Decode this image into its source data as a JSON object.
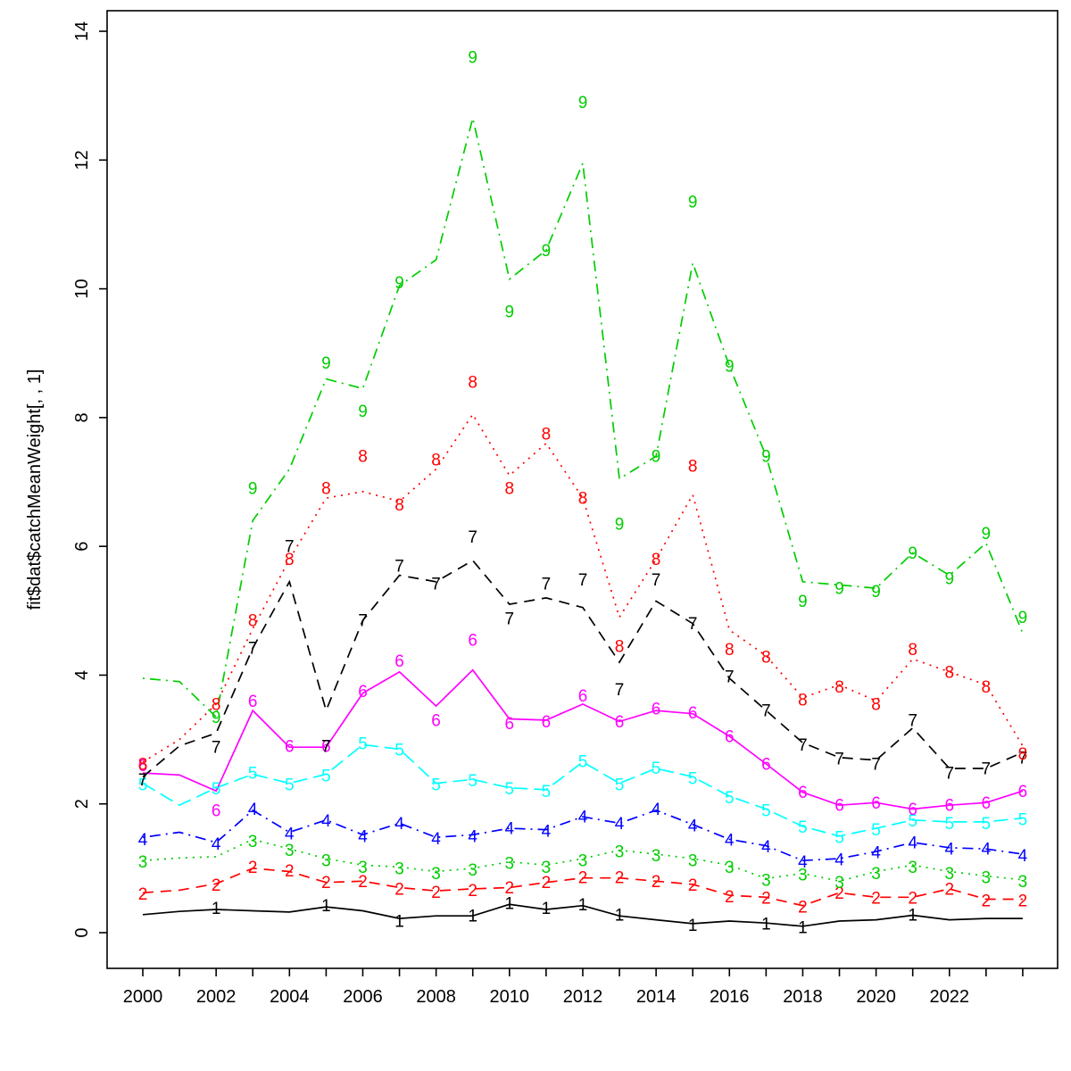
{
  "chart_data": {
    "type": "line",
    "title": "",
    "xlabel": "",
    "ylabel": "fit$dat$catchMeanWeight[, , 1]",
    "x": [
      2000,
      2001,
      2002,
      2003,
      2004,
      2005,
      2006,
      2007,
      2008,
      2009,
      2010,
      2011,
      2012,
      2013,
      2014,
      2015,
      2016,
      2017,
      2018,
      2019,
      2020,
      2021,
      2022,
      2023,
      2024
    ],
    "xtick_labels": [
      2000,
      2002,
      2004,
      2006,
      2008,
      2010,
      2012,
      2014,
      2016,
      2018,
      2020,
      2022
    ],
    "yticks": [
      0,
      2,
      4,
      6,
      8,
      10,
      12,
      14
    ],
    "ylim": [
      0,
      14
    ],
    "grid": false,
    "legend": "none",
    "series": [
      {
        "name": "1",
        "color": "#000000",
        "linestyle": "solid",
        "line": [
          0.28,
          0.33,
          0.36,
          0.34,
          0.32,
          0.4,
          0.34,
          0.22,
          0.26,
          0.26,
          0.44,
          0.36,
          0.42,
          0.26,
          0.2,
          0.14,
          0.18,
          0.15,
          0.1,
          0.18,
          0.2,
          0.27,
          0.2,
          0.22,
          0.22
        ],
        "obs": [
          null,
          null,
          0.38,
          null,
          null,
          0.42,
          null,
          0.18,
          null,
          0.26,
          0.46,
          0.38,
          0.44,
          0.28,
          null,
          0.12,
          null,
          0.14,
          0.08,
          null,
          null,
          0.28,
          null,
          null,
          null
        ]
      },
      {
        "name": "2",
        "color": "#FF0000",
        "linestyle": "dashed",
        "line": [
          0.62,
          0.66,
          0.76,
          1.0,
          0.95,
          0.78,
          0.8,
          0.7,
          0.65,
          0.68,
          0.7,
          0.78,
          0.85,
          0.85,
          0.8,
          0.75,
          0.58,
          0.55,
          0.42,
          0.62,
          0.55,
          0.55,
          0.68,
          0.52,
          0.52
        ],
        "obs": [
          0.6,
          null,
          0.74,
          1.02,
          0.96,
          0.78,
          0.8,
          0.68,
          0.63,
          0.66,
          0.7,
          0.78,
          0.86,
          0.86,
          0.8,
          0.74,
          0.56,
          0.54,
          0.4,
          0.62,
          0.54,
          0.54,
          0.68,
          0.5,
          0.5
        ]
      },
      {
        "name": "3",
        "color": "#00CD00",
        "linestyle": "dotted",
        "line": [
          1.12,
          1.16,
          1.18,
          1.45,
          1.3,
          1.15,
          1.05,
          1.02,
          0.95,
          1.0,
          1.1,
          1.05,
          1.15,
          1.28,
          1.22,
          1.15,
          1.05,
          0.84,
          0.92,
          0.8,
          0.95,
          1.05,
          0.95,
          0.88,
          0.82
        ],
        "obs": [
          1.1,
          null,
          null,
          1.42,
          1.28,
          1.12,
          1.02,
          1.0,
          0.92,
          0.98,
          1.08,
          1.02,
          1.12,
          1.26,
          1.2,
          1.12,
          1.02,
          0.82,
          0.9,
          0.78,
          0.92,
          1.02,
          0.92,
          0.86,
          0.8
        ]
      },
      {
        "name": "4",
        "color": "#0000FF",
        "linestyle": "dotdash",
        "line": [
          1.48,
          1.56,
          1.4,
          1.9,
          1.56,
          1.75,
          1.52,
          1.7,
          1.48,
          1.52,
          1.62,
          1.6,
          1.8,
          1.7,
          1.9,
          1.68,
          1.45,
          1.35,
          1.12,
          1.15,
          1.26,
          1.4,
          1.32,
          1.3,
          1.22
        ],
        "obs": [
          1.45,
          null,
          1.38,
          1.92,
          1.54,
          1.74,
          1.5,
          1.7,
          1.46,
          1.5,
          1.62,
          1.58,
          1.8,
          1.7,
          1.92,
          1.66,
          1.44,
          1.34,
          1.1,
          1.14,
          1.25,
          1.4,
          1.3,
          1.3,
          1.2
        ]
      },
      {
        "name": "5",
        "color": "#00FFFF",
        "linestyle": "longdash",
        "line": [
          2.32,
          1.98,
          2.25,
          2.46,
          2.32,
          2.46,
          2.92,
          2.85,
          2.32,
          2.38,
          2.25,
          2.22,
          2.65,
          2.32,
          2.55,
          2.42,
          2.12,
          1.92,
          1.65,
          1.5,
          1.62,
          1.75,
          1.72,
          1.72,
          1.78
        ],
        "obs": [
          2.3,
          null,
          2.24,
          2.48,
          2.3,
          2.44,
          2.94,
          2.84,
          2.3,
          2.36,
          2.24,
          2.2,
          2.66,
          2.3,
          2.56,
          2.4,
          2.1,
          1.9,
          1.64,
          1.48,
          1.6,
          1.74,
          1.7,
          1.7,
          1.76
        ]
      },
      {
        "name": "6",
        "color": "#FF00FF",
        "linestyle": "solid",
        "line": [
          2.48,
          2.45,
          2.2,
          3.45,
          2.88,
          2.88,
          3.72,
          4.05,
          3.52,
          4.08,
          3.32,
          3.3,
          3.55,
          3.28,
          3.45,
          3.4,
          3.05,
          2.62,
          2.18,
          1.98,
          2.02,
          1.92,
          1.98,
          2.02,
          2.2
        ],
        "obs": [
          2.6,
          null,
          1.9,
          3.6,
          2.9,
          2.9,
          3.75,
          4.22,
          3.3,
          4.55,
          3.25,
          3.28,
          3.68,
          3.28,
          3.48,
          3.42,
          3.05,
          2.62,
          2.18,
          1.98,
          2.02,
          1.92,
          1.98,
          2.02,
          2.2
        ]
      },
      {
        "name": "7",
        "color": "#000000",
        "linestyle": "dashed",
        "line": [
          2.42,
          2.9,
          3.1,
          4.42,
          5.45,
          3.45,
          4.85,
          5.55,
          5.45,
          5.78,
          5.1,
          5.2,
          5.05,
          4.2,
          5.15,
          4.8,
          3.95,
          3.45,
          2.95,
          2.72,
          2.68,
          3.18,
          2.55,
          2.55,
          2.8
        ],
        "obs": [
          2.38,
          null,
          2.88,
          4.42,
          6.0,
          2.9,
          4.85,
          5.7,
          5.42,
          6.15,
          4.88,
          5.42,
          5.48,
          3.78,
          5.48,
          4.8,
          3.98,
          3.45,
          2.92,
          2.7,
          2.62,
          3.3,
          2.48,
          2.55,
          2.72
        ]
      },
      {
        "name": "8",
        "color": "#FF0000",
        "linestyle": "dotted",
        "line": [
          2.65,
          3.0,
          3.55,
          4.72,
          5.8,
          6.75,
          6.85,
          6.7,
          7.2,
          8.05,
          7.1,
          7.6,
          6.75,
          4.9,
          5.8,
          6.8,
          4.7,
          4.3,
          3.65,
          3.85,
          3.6,
          4.25,
          4.05,
          3.85,
          2.9
        ],
        "obs": [
          2.62,
          null,
          3.55,
          4.85,
          5.8,
          6.9,
          7.4,
          6.65,
          7.35,
          8.55,
          6.9,
          7.75,
          6.75,
          4.45,
          5.8,
          7.25,
          4.4,
          4.28,
          3.62,
          3.82,
          3.55,
          4.4,
          4.05,
          3.82,
          2.78
        ]
      },
      {
        "name": "9",
        "color": "#00CD00",
        "linestyle": "dotdash",
        "line": [
          3.95,
          3.9,
          3.35,
          6.4,
          7.2,
          8.6,
          8.45,
          10.05,
          10.45,
          12.65,
          10.15,
          10.6,
          11.95,
          7.05,
          7.4,
          10.4,
          8.8,
          7.4,
          5.45,
          5.4,
          5.35,
          5.9,
          5.55,
          6.05,
          4.65
        ],
        "obs": [
          null,
          null,
          3.35,
          6.9,
          null,
          8.85,
          8.1,
          10.1,
          null,
          13.6,
          9.65,
          10.6,
          12.9,
          6.35,
          7.4,
          11.35,
          8.8,
          7.4,
          5.15,
          5.35,
          5.3,
          5.9,
          5.5,
          6.2,
          4.9
        ]
      }
    ]
  }
}
